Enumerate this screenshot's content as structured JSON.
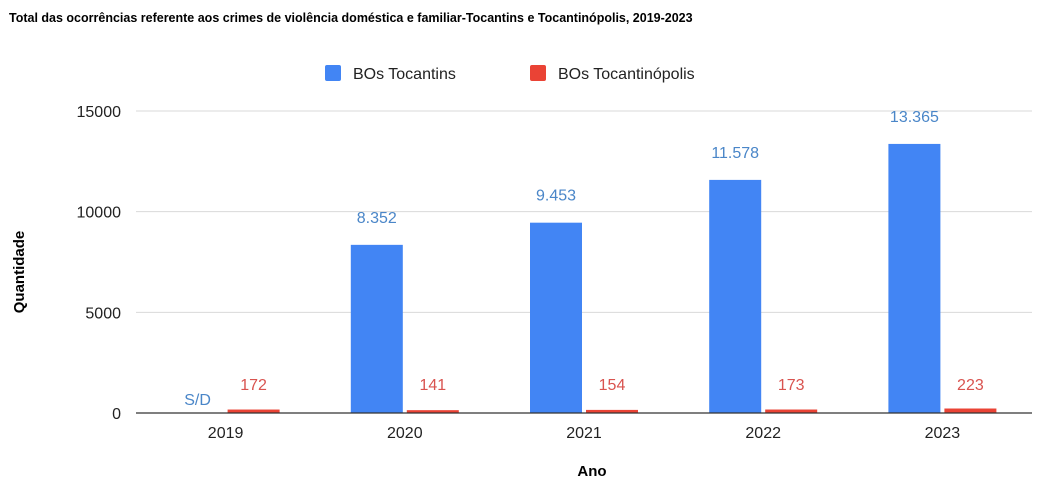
{
  "chart_data": {
    "type": "bar",
    "title": "Total das ocorrências referente aos crimes de violência doméstica e familiar-Tocantins e Tocantinópolis, 2019-2023",
    "xlabel": "Ano",
    "ylabel": "Quantidade",
    "categories": [
      "2019",
      "2020",
      "2021",
      "2022",
      "2023"
    ],
    "ylim": [
      0,
      15000
    ],
    "yticks": [
      "0",
      "5000",
      "10000",
      "15000"
    ],
    "grid": true,
    "legend_position": "top-center",
    "series": [
      {
        "name": "BOs Tocantins",
        "color": "#4285f4",
        "label_color": "#4a86c8",
        "values": [
          null,
          8352,
          9453,
          11578,
          13365
        ],
        "labels": [
          "S/D",
          "8.352",
          "9.453",
          "11.578",
          "13.365"
        ]
      },
      {
        "name": "BOs Tocantinópolis",
        "color": "#ea4335",
        "label_color": "#d9534f",
        "values": [
          172,
          141,
          154,
          173,
          223
        ],
        "labels": [
          "172",
          "141",
          "154",
          "173",
          "223"
        ]
      }
    ]
  }
}
